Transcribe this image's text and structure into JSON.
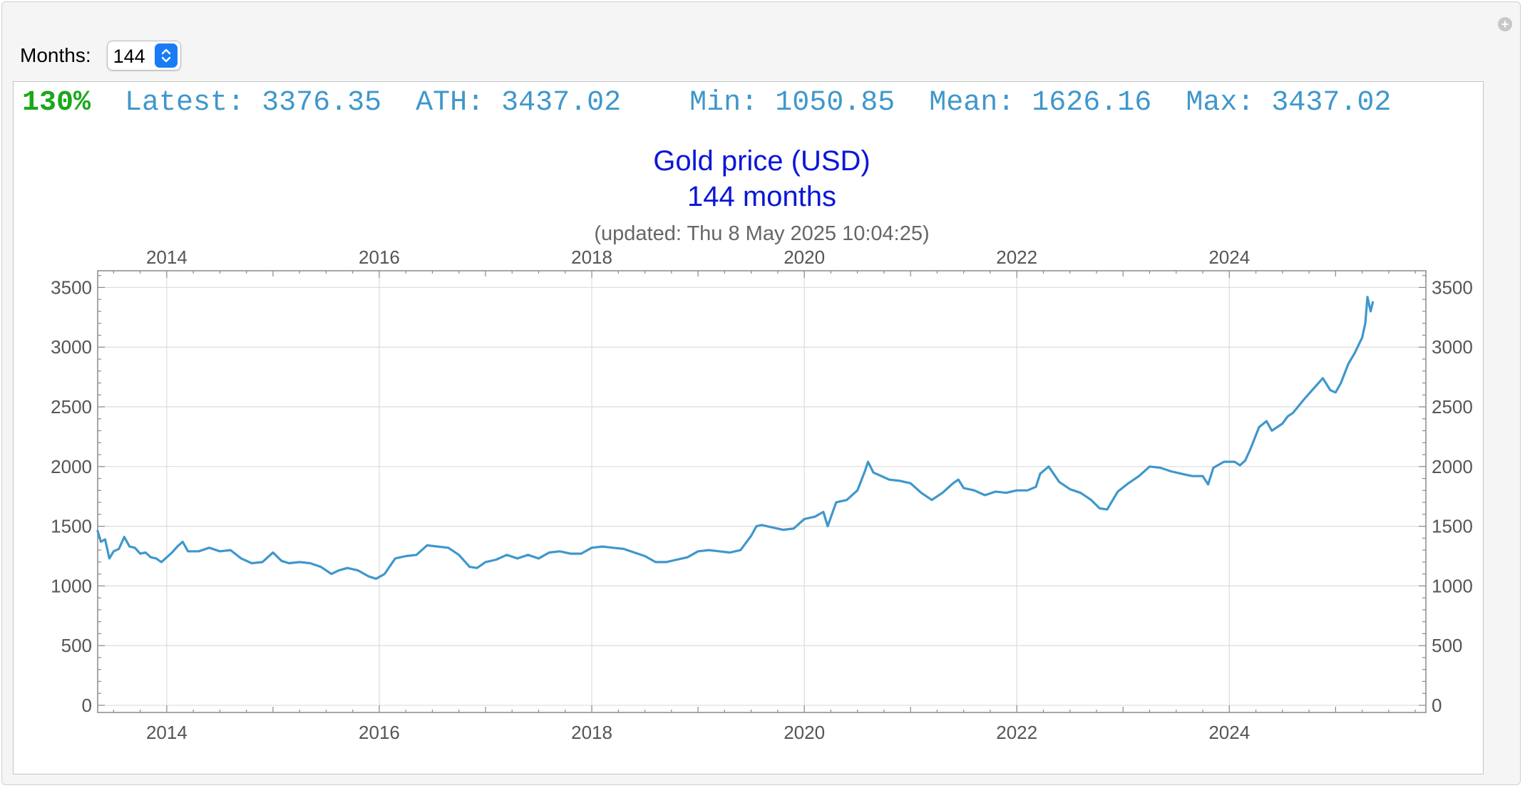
{
  "controls": {
    "months_label": "Months:",
    "months_value": "144"
  },
  "stats": {
    "percent": "130%",
    "latest": "Latest: 3376.35",
    "ath": "ATH: 3437.02",
    "min": "Min: 1050.85",
    "mean": "Mean: 1626.16",
    "max": "Max: 3437.02"
  },
  "colors": {
    "series": "#3f97cc",
    "percent": "#1aa81a",
    "title": "#0a16d8",
    "accent": "#1a7cf5"
  },
  "chart_data": {
    "type": "line",
    "title": "Gold price (USD)",
    "subtitle": "144 months",
    "updated": "(updated: Thu 8 May 2025 10:04:25)",
    "xlabel": "",
    "ylabel": "",
    "xlim": [
      2013.35,
      2025.85
    ],
    "ylim": [
      -60,
      3640
    ],
    "x_ticks": [
      2014,
      2016,
      2018,
      2020,
      2022,
      2024
    ],
    "x_tick_labels": [
      "2014",
      "2016",
      "2018",
      "2020",
      "2022",
      "2024"
    ],
    "y_ticks": [
      0,
      500,
      1000,
      1500,
      2000,
      2500,
      3000,
      3500
    ],
    "y_tick_labels": [
      "0",
      "500",
      "1000",
      "1500",
      "2000",
      "2500",
      "3000",
      "3500"
    ],
    "grid": true,
    "legend": "none",
    "series": [
      {
        "x": [
          2013.35,
          2013.38,
          2013.42,
          2013.46,
          2013.5,
          2013.55,
          2013.6,
          2013.65,
          2013.7,
          2013.75,
          2013.8,
          2013.85,
          2013.9,
          2013.95,
          2014.0,
          2014.05,
          2014.1,
          2014.15,
          2014.2,
          2014.3,
          2014.4,
          2014.5,
          2014.6,
          2014.7,
          2014.8,
          2014.9,
          2015.0,
          2015.08,
          2015.15,
          2015.25,
          2015.35,
          2015.45,
          2015.55,
          2015.62,
          2015.7,
          2015.8,
          2015.9,
          2015.97,
          2016.05,
          2016.15,
          2016.25,
          2016.35,
          2016.45,
          2016.55,
          2016.65,
          2016.75,
          2016.85,
          2016.92,
          2017.0,
          2017.1,
          2017.2,
          2017.3,
          2017.4,
          2017.5,
          2017.6,
          2017.7,
          2017.8,
          2017.9,
          2018.0,
          2018.1,
          2018.2,
          2018.3,
          2018.4,
          2018.5,
          2018.6,
          2018.7,
          2018.8,
          2018.9,
          2019.0,
          2019.1,
          2019.2,
          2019.3,
          2019.4,
          2019.5,
          2019.55,
          2019.6,
          2019.7,
          2019.8,
          2019.9,
          2020.0,
          2020.1,
          2020.18,
          2020.22,
          2020.3,
          2020.4,
          2020.5,
          2020.57,
          2020.6,
          2020.65,
          2020.7,
          2020.8,
          2020.9,
          2021.0,
          2021.1,
          2021.2,
          2021.3,
          2021.4,
          2021.45,
          2021.5,
          2021.6,
          2021.7,
          2021.8,
          2021.9,
          2022.0,
          2022.1,
          2022.18,
          2022.22,
          2022.3,
          2022.4,
          2022.5,
          2022.6,
          2022.7,
          2022.78,
          2022.85,
          2022.95,
          2023.05,
          2023.15,
          2023.25,
          2023.35,
          2023.45,
          2023.55,
          2023.65,
          2023.75,
          2023.8,
          2023.85,
          2023.95,
          2024.05,
          2024.1,
          2024.15,
          2024.2,
          2024.28,
          2024.35,
          2024.4,
          2024.5,
          2024.55,
          2024.6,
          2024.7,
          2024.8,
          2024.88,
          2024.95,
          2025.0,
          2025.05,
          2025.12,
          2025.18,
          2025.25,
          2025.28,
          2025.3,
          2025.33,
          2025.35
        ],
        "y": [
          1460,
          1370,
          1390,
          1230,
          1290,
          1310,
          1410,
          1330,
          1320,
          1270,
          1280,
          1240,
          1230,
          1200,
          1240,
          1280,
          1330,
          1370,
          1290,
          1290,
          1320,
          1290,
          1300,
          1230,
          1190,
          1200,
          1280,
          1210,
          1190,
          1200,
          1190,
          1160,
          1100,
          1130,
          1150,
          1130,
          1080,
          1060,
          1100,
          1230,
          1250,
          1260,
          1340,
          1330,
          1320,
          1260,
          1160,
          1150,
          1200,
          1220,
          1260,
          1230,
          1260,
          1230,
          1280,
          1290,
          1270,
          1270,
          1320,
          1330,
          1320,
          1310,
          1280,
          1250,
          1200,
          1200,
          1220,
          1240,
          1290,
          1300,
          1290,
          1280,
          1300,
          1420,
          1500,
          1510,
          1490,
          1470,
          1480,
          1560,
          1580,
          1620,
          1500,
          1700,
          1720,
          1800,
          1960,
          2040,
          1950,
          1930,
          1890,
          1880,
          1860,
          1780,
          1720,
          1780,
          1860,
          1890,
          1820,
          1800,
          1760,
          1790,
          1780,
          1800,
          1800,
          1830,
          1940,
          2000,
          1870,
          1810,
          1780,
          1720,
          1650,
          1640,
          1790,
          1860,
          1920,
          2000,
          1990,
          1960,
          1940,
          1920,
          1920,
          1850,
          1990,
          2040,
          2040,
          2010,
          2050,
          2150,
          2330,
          2380,
          2300,
          2360,
          2420,
          2450,
          2560,
          2660,
          2740,
          2640,
          2620,
          2700,
          2860,
          2950,
          3080,
          3200,
          3420,
          3300,
          3376
        ]
      }
    ]
  }
}
